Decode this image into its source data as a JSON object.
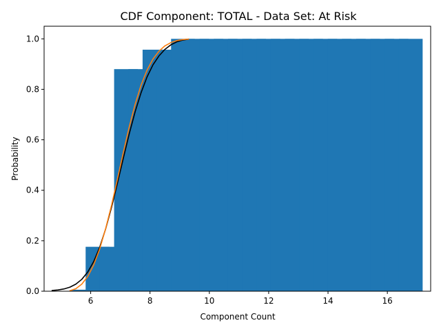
{
  "chart_data": {
    "type": "bar",
    "title": "CDF Component: TOTAL - Data Set: At Risk",
    "xlabel": "Component Count",
    "ylabel": "Probability",
    "xlim": [
      4.43,
      17.46
    ],
    "ylim": [
      0,
      1.05
    ],
    "xticks": [
      6,
      8,
      10,
      12,
      14,
      16
    ],
    "yticks": [
      0.0,
      0.2,
      0.4,
      0.6,
      0.8,
      1.0
    ],
    "xtick_labels": [
      "6",
      "8",
      "10",
      "12",
      "14",
      "16"
    ],
    "ytick_labels": [
      "0.0",
      "0.2",
      "0.4",
      "0.6",
      "0.8",
      "1.0"
    ],
    "grid": false,
    "bar_width": 0.8,
    "bar_color": "#1f77b4",
    "x": [
      5.75,
      6.23,
      6.71,
      7.19,
      7.67,
      8.15,
      8.63,
      9.11,
      9.59,
      10.07,
      10.55,
      11.03,
      11.51,
      11.99,
      12.47,
      12.95,
      13.43,
      13.91,
      14.39,
      14.87,
      15.35,
      15.83,
      16.31,
      16.79
    ],
    "values": [
      0.006,
      0.176,
      0.176,
      0.88,
      0.88,
      0.957,
      0.957,
      1.0,
      1.0,
      1.0,
      1.0,
      1.0,
      1.0,
      1.0,
      1.0,
      1.0,
      1.0,
      1.0,
      1.0,
      1.0,
      1.0,
      1.0,
      1.0,
      1.0
    ],
    "lines": [
      {
        "color": "#000000",
        "x": [
          4.7,
          4.9,
          5.1,
          5.3,
          5.5,
          5.7,
          5.9,
          6.1,
          6.3,
          6.5,
          6.7,
          6.9,
          7.1,
          7.3,
          7.5,
          7.7,
          7.9,
          8.1,
          8.3,
          8.5,
          8.7,
          8.9,
          9.1,
          9.3
        ],
        "y": [
          0.003,
          0.005,
          0.009,
          0.016,
          0.028,
          0.047,
          0.076,
          0.117,
          0.173,
          0.245,
          0.331,
          0.427,
          0.527,
          0.624,
          0.712,
          0.787,
          0.849,
          0.897,
          0.932,
          0.958,
          0.976,
          0.988,
          0.995,
          0.999
        ]
      },
      {
        "color": "#ff7f0e",
        "x": [
          5.3,
          5.5,
          5.7,
          5.9,
          6.1,
          6.3,
          6.5,
          6.7,
          6.9,
          7.1,
          7.3,
          7.5,
          7.7,
          7.9,
          8.1,
          8.3,
          8.5,
          8.7,
          8.9,
          9.1,
          9.3
        ],
        "y": [
          0.002,
          0.01,
          0.028,
          0.058,
          0.104,
          0.166,
          0.246,
          0.339,
          0.443,
          0.55,
          0.651,
          0.741,
          0.817,
          0.876,
          0.92,
          0.951,
          0.972,
          0.985,
          0.993,
          0.997,
          0.999
        ]
      }
    ]
  }
}
